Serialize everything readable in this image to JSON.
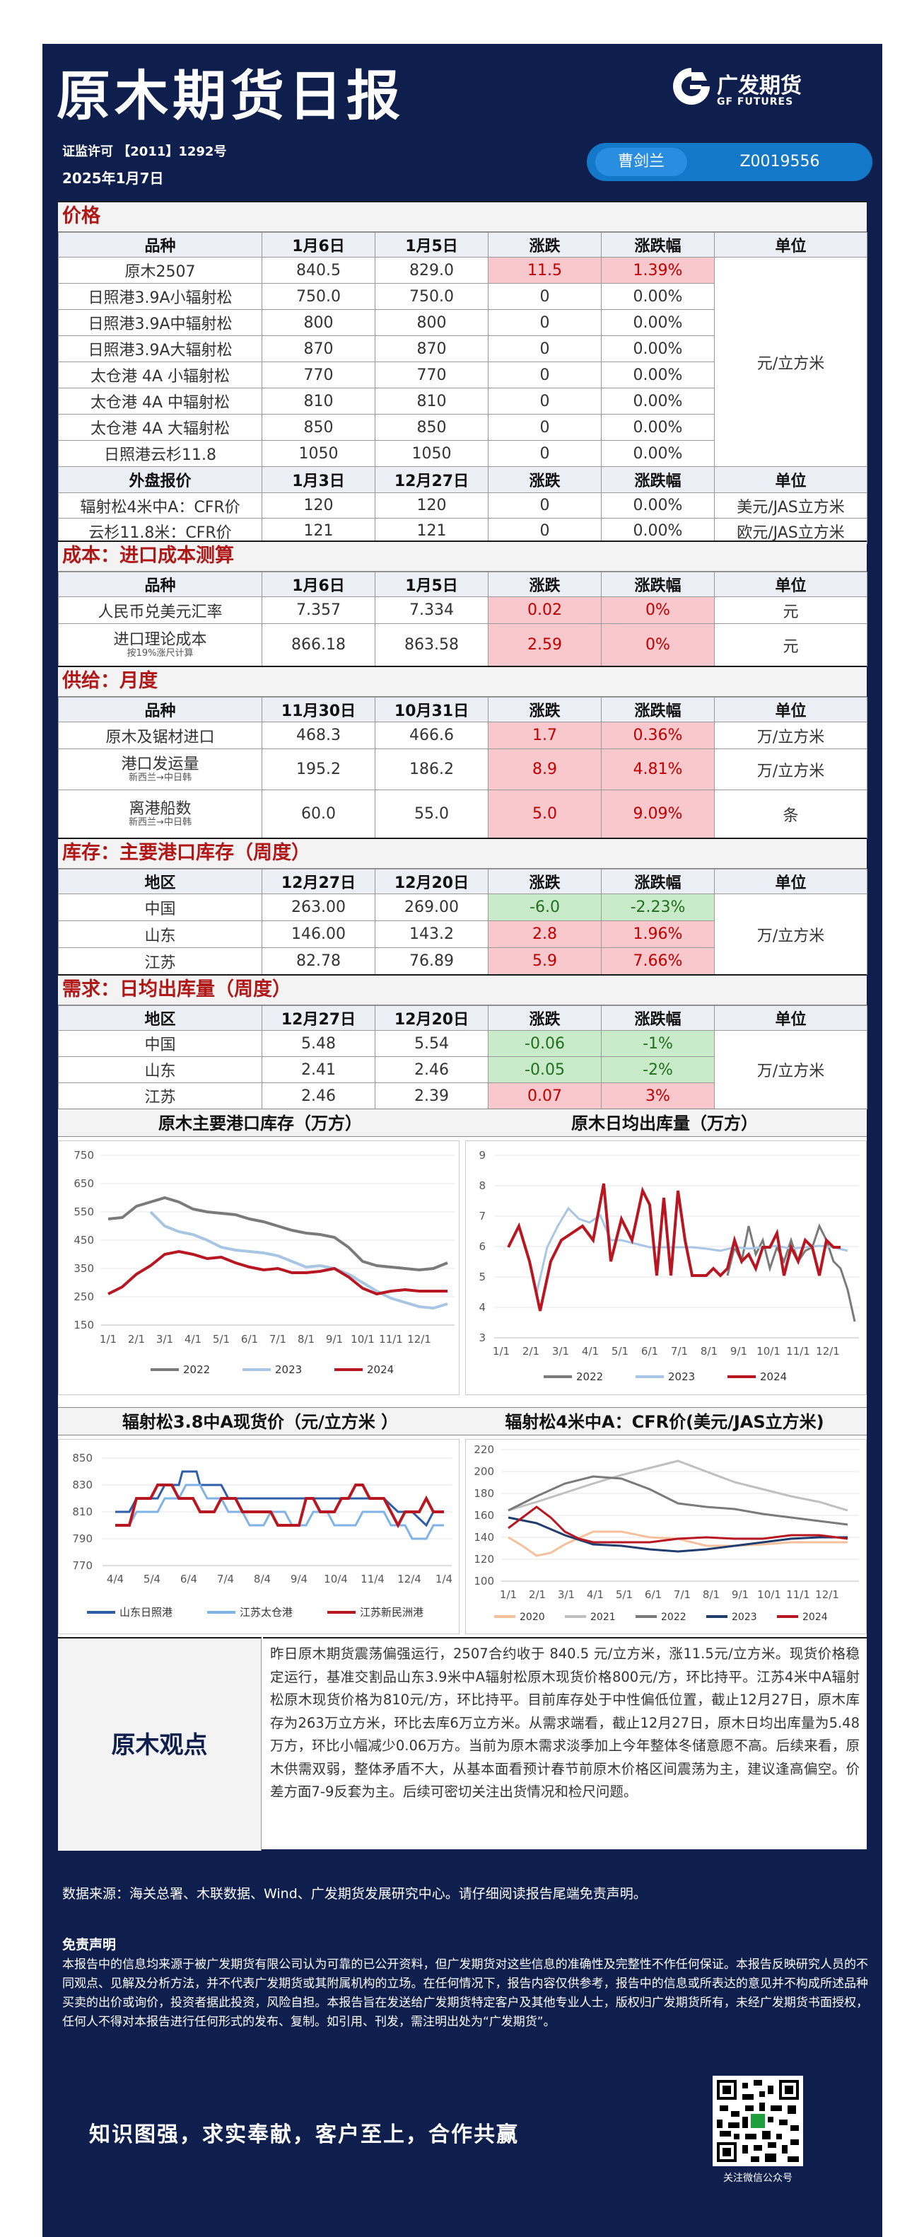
{
  "header": {
    "title": "原木期货日报",
    "logo_cn": "广发期货",
    "logo_en": "GF FUTURES",
    "license": "证监许可 【2011】1292号",
    "date": "2025年1月7日",
    "analyst_name": "曹剑兰",
    "analyst_id": "Z0019556"
  },
  "price": {
    "section": "价格",
    "headers": [
      "品种",
      "1月6日",
      "1月5日",
      "涨跌",
      "涨跌幅",
      "单位"
    ],
    "rows": [
      [
        "原木2507",
        "840.5",
        "829.0",
        "11.5",
        "1.39%"
      ],
      [
        "日照港3.9A小辐射松",
        "750.0",
        "750.0",
        "0",
        "0.00%"
      ],
      [
        "日照港3.9A中辐射松",
        "800",
        "800",
        "0",
        "0.00%"
      ],
      [
        "日照港3.9A大辐射松",
        "870",
        "870",
        "0",
        "0.00%"
      ],
      [
        "太仓港 4A 小辐射松",
        "770",
        "770",
        "0",
        "0.00%"
      ],
      [
        "太仓港 4A 中辐射松",
        "810",
        "810",
        "0",
        "0.00%"
      ],
      [
        "太仓港 4A 大辐射松",
        "850",
        "850",
        "0",
        "0.00%"
      ],
      [
        "日照港云杉11.8",
        "1050",
        "1050",
        "0",
        "0.00%"
      ]
    ],
    "unit": "元/立方米",
    "ext_headers": [
      "外盘报价",
      "1月3日",
      "12月27日",
      "涨跌",
      "涨跌幅",
      "单位"
    ],
    "ext_rows": [
      [
        "辐射松4米中A：CFR价",
        "120",
        "120",
        "0",
        "0.00%",
        "美元/JAS立方米"
      ],
      [
        "云杉11.8米：CFR价",
        "121",
        "121",
        "0",
        "0.00%",
        "欧元/JAS立方米"
      ]
    ]
  },
  "cost": {
    "section": "成本：进口成本测算",
    "headers": [
      "品种",
      "1月6日",
      "1月5日",
      "涨跌",
      "涨跌幅",
      "单位"
    ],
    "row1": [
      "人民币兑美元汇率",
      "7.357",
      "7.334",
      "0.02",
      "0%",
      "元"
    ],
    "row2_label": "进口理论成本",
    "row2_sub": "按19%涨尺计算",
    "row2": [
      "866.18",
      "863.58",
      "2.59",
      "0%",
      "元"
    ]
  },
  "supply": {
    "section": "供给：月度",
    "headers": [
      "品种",
      "11月30日",
      "10月31日",
      "涨跌",
      "涨跌幅",
      "单位"
    ],
    "row1": [
      "原木及锯材进口",
      "468.3",
      "466.6",
      "1.7",
      "0.36%",
      "万/立方米"
    ],
    "row2_label": "港口发运量",
    "row2_sub": "新西兰→中日韩",
    "row2": [
      "195.2",
      "186.2",
      "8.9",
      "4.81%",
      "万/立方米"
    ],
    "row3_label": "离港船数",
    "row3_sub": "新西兰→中日韩",
    "row3": [
      "60.0",
      "55.0",
      "5.0",
      "9.09%",
      "条"
    ]
  },
  "inventory": {
    "section": "库存：主要港口库存（周度）",
    "headers": [
      "地区",
      "12月27日",
      "12月20日",
      "涨跌",
      "涨跌幅",
      "单位"
    ],
    "rows": [
      [
        "中国",
        "263.00",
        "269.00",
        "-6.0",
        "-2.23%"
      ],
      [
        "山东",
        "146.00",
        "143.2",
        "2.8",
        "1.96%"
      ],
      [
        "江苏",
        "82.78",
        "76.89",
        "5.9",
        "7.66%"
      ]
    ],
    "unit": "万/立方米"
  },
  "demand": {
    "section": "需求：日均出库量（周度）",
    "headers": [
      "地区",
      "12月27日",
      "12月20日",
      "涨跌",
      "涨跌幅",
      "单位"
    ],
    "rows": [
      [
        "中国",
        "5.48",
        "5.54",
        "-0.06",
        "-1%"
      ],
      [
        "山东",
        "2.41",
        "2.46",
        "-0.05",
        "-2%"
      ],
      [
        "江苏",
        "2.46",
        "2.39",
        "0.07",
        "3%"
      ]
    ],
    "unit": "万/立方米"
  },
  "charts": {
    "titles": [
      "原木主要港口库存（万方）",
      "原木日均出库量（万方）",
      "辐射松3.8中A现货价（元/立方米 ）",
      "辐射松4米中A：CFR价(美元/JAS立方米)"
    ],
    "c1": {
      "yticks": [
        "750",
        "650",
        "550",
        "450",
        "350",
        "250",
        "150"
      ],
      "xticks": [
        "1/1",
        "2/1",
        "3/1",
        "4/1",
        "5/1",
        "6/1",
        "7/1",
        "8/1",
        "9/1",
        "10/1",
        "11/1",
        "12/1"
      ],
      "legend": [
        "2022",
        "2023",
        "2024"
      ]
    },
    "c2": {
      "yticks": [
        "9",
        "8",
        "7",
        "6",
        "5",
        "4",
        "3"
      ],
      "xticks": [
        "1/1",
        "2/1",
        "3/1",
        "4/1",
        "5/1",
        "6/1",
        "7/1",
        "8/1",
        "9/1",
        "10/1",
        "11/1",
        "12/1"
      ],
      "legend": [
        "2022",
        "2023",
        "2024"
      ]
    },
    "c3": {
      "yticks": [
        "850",
        "830",
        "810",
        "790",
        "770"
      ],
      "xticks": [
        "4/4",
        "5/4",
        "6/4",
        "7/4",
        "8/4",
        "9/4",
        "10/4",
        "11/4",
        "12/4",
        "1/4"
      ],
      "legend": [
        "山东日照港",
        "江苏太仓港",
        "江苏新民洲港"
      ]
    },
    "c4": {
      "yticks": [
        "220",
        "200",
        "180",
        "160",
        "140",
        "120",
        "100"
      ],
      "xticks": [
        "1/1",
        "2/1",
        "3/1",
        "4/1",
        "5/1",
        "6/1",
        "7/1",
        "8/1",
        "9/1",
        "10/1",
        "11/1",
        "12/1"
      ],
      "legend": [
        "2020",
        "2021",
        "2022",
        "2023",
        "2024"
      ]
    }
  },
  "view": {
    "label": "原木观点",
    "text": "昨日原木期货震荡偏强运行，2507合约收于 840.5 元/立方米，涨11.5元/立方米。现货价格稳定运行，基准交割品山东3.9米中A辐射松原木现货价格800元/方，环比持平。江苏4米中A辐射松原木现货价格为810元/方，环比持平。目前库存处于中性偏低位置，截止12月27日，原木库存为263万立方米，环比去库6万立方米。从需求端看，截止12月27日，原木日均出库量为5.48万方，环比小幅减少0.06万方。当前为原木需求淡季加上今年整体冬储意愿不高。后续来看，原木供需双弱，整体矛盾不大，从基本面看预计春节前原木价格区间震荡为主，建议逢高偏空。价差方面7-9反套为主。后续可密切关注出货情况和检尺问题。"
  },
  "footer": {
    "sources": "数据来源：海关总署、木联数据、Wind、广发期货发展研究中心。请仔细阅读报告尾端免责声明。",
    "disclaimer_title": "免责声明",
    "disclaimer": "本报告中的信息均来源于被广发期货有限公司认为可靠的已公开资料，但广发期货对这些信息的准确性及完整性不作任何保证。本报告反映研究人员的不同观点、见解及分析方法，并不代表广发期货或其附属机构的立场。在任何情况下，报告内容仅供参考，报告中的信息或所表达的意见并不构成所述品种买卖的出价或询价，投资者据此投资，风险自担。本报告旨在发送给广发期货特定客户及其他专业人士，版权归广发期货所有，未经广发期货书面授权，任何人不得对本报告进行任何形式的发布、复制。如引用、刊发，需注明出处为“广发期货”。",
    "slogan": "知识图强，求实奉献，客户至上，合作共赢",
    "qr_label": "关注微信公众号"
  }
}
